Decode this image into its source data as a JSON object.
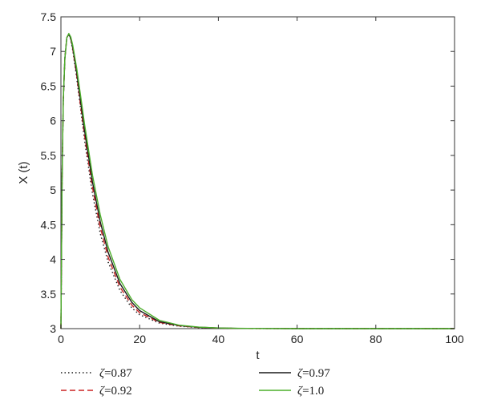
{
  "chart_data": {
    "type": "line",
    "title": "",
    "xlabel": "t",
    "ylabel": "X (t)",
    "xlim": [
      0,
      100
    ],
    "ylim": [
      3,
      7.5
    ],
    "xticks": [
      0,
      20,
      40,
      60,
      80,
      100
    ],
    "yticks": [
      3,
      3.5,
      4,
      4.5,
      5,
      5.5,
      6,
      6.5,
      7,
      7.5
    ],
    "grid": false,
    "legend_position": "bottom, outside plot, two columns",
    "series": [
      {
        "name": "ζ=0.87",
        "symbol": "ζ",
        "value_text": "=0.87",
        "color": "#1a1a1a",
        "style": "dotted",
        "x": [
          0,
          0.3,
          0.6,
          1,
          1.5,
          2,
          2.5,
          3,
          4,
          5,
          6,
          8,
          10,
          12,
          15,
          18,
          20,
          25,
          30,
          35,
          40,
          45,
          50,
          60,
          70,
          80,
          90,
          100
        ],
        "y": [
          3,
          5.2,
          6.3,
          6.9,
          7.2,
          7.25,
          7.17,
          7.02,
          6.62,
          6.17,
          5.72,
          4.95,
          4.37,
          3.96,
          3.55,
          3.3,
          3.2,
          3.08,
          3.035,
          3.015,
          3.007,
          3.003,
          3.001,
          3.0,
          3.0,
          3.0,
          3.0,
          3.0
        ]
      },
      {
        "name": "ζ=0.92",
        "symbol": "ζ",
        "value_text": "=0.92",
        "color": "#cc2222",
        "style": "dashed",
        "x": [
          0,
          0.3,
          0.6,
          1,
          1.5,
          2,
          2.5,
          3,
          4,
          5,
          6,
          8,
          10,
          12,
          15,
          18,
          20,
          25,
          30,
          35,
          40,
          45,
          50,
          60,
          70,
          80,
          90,
          100
        ],
        "y": [
          3,
          5.2,
          6.3,
          6.9,
          7.2,
          7.25,
          7.18,
          7.04,
          6.66,
          6.22,
          5.79,
          5.04,
          4.46,
          4.03,
          3.6,
          3.34,
          3.23,
          3.09,
          3.04,
          3.017,
          3.008,
          3.003,
          3.001,
          3.0,
          3.0,
          3.0,
          3.0,
          3.0
        ]
      },
      {
        "name": "ζ=0.97",
        "symbol": "ζ",
        "value_text": "=0.97",
        "color": "#1a1a1a",
        "style": "solid",
        "x": [
          0,
          0.3,
          0.6,
          1,
          1.5,
          2,
          2.5,
          3,
          4,
          5,
          6,
          8,
          10,
          12,
          15,
          18,
          20,
          25,
          30,
          35,
          40,
          45,
          50,
          60,
          70,
          80,
          90,
          100
        ],
        "y": [
          3,
          5.2,
          6.3,
          6.9,
          7.2,
          7.25,
          7.19,
          7.06,
          6.7,
          6.28,
          5.86,
          5.12,
          4.54,
          4.1,
          3.65,
          3.38,
          3.26,
          3.1,
          3.045,
          3.02,
          3.009,
          3.004,
          3.002,
          3.0,
          3.0,
          3.0,
          3.0,
          3.0
        ]
      },
      {
        "name": "ζ=1.0",
        "symbol": "ζ",
        "value_text": "=1.0",
        "color": "#4caf2a",
        "style": "solid",
        "x": [
          0,
          0.3,
          0.6,
          1,
          1.5,
          2,
          2.5,
          3,
          4,
          5,
          6,
          8,
          10,
          12,
          15,
          18,
          20,
          25,
          30,
          35,
          40,
          45,
          50,
          60,
          70,
          80,
          90,
          100
        ],
        "y": [
          3,
          5.2,
          6.3,
          6.9,
          7.2,
          7.26,
          7.21,
          7.09,
          6.76,
          6.36,
          5.95,
          5.22,
          4.64,
          4.18,
          3.71,
          3.42,
          3.3,
          3.12,
          3.05,
          3.022,
          3.01,
          3.005,
          3.002,
          3.0,
          3.0,
          3.0,
          3.0,
          3.0
        ]
      }
    ]
  }
}
